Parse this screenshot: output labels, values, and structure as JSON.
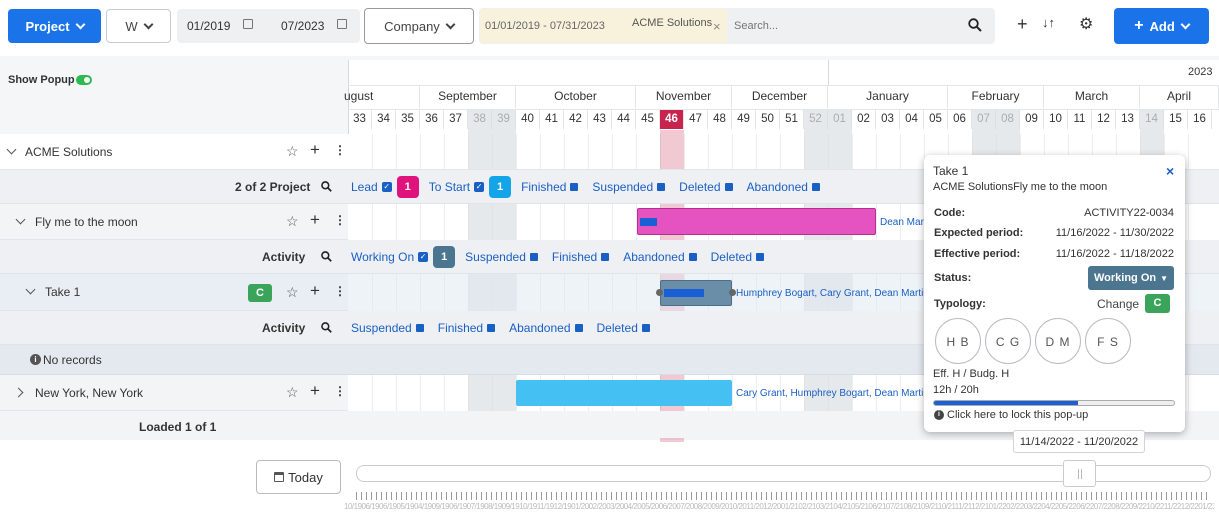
{
  "toolbar": {
    "project_label": "Project",
    "view_label": "W",
    "date_from": "01/2019",
    "date_to": "07/2023",
    "company_label": "Company",
    "filter_range": "01/01/2019 - 07/31/2023",
    "filter_chip": "ACME Solutions",
    "search_placeholder": "Search...",
    "add_label": "Add"
  },
  "show_popup_label": "Show Popup",
  "timeline": {
    "year_label": "2023",
    "months": [
      "ugust",
      "September",
      "October",
      "November",
      "December",
      "January",
      "February",
      "March",
      "April"
    ],
    "weeks": [
      "33",
      "34",
      "35",
      "36",
      "37",
      "38",
      "39",
      "40",
      "41",
      "42",
      "43",
      "44",
      "45",
      "46",
      "47",
      "48",
      "49",
      "50",
      "51",
      "52",
      "01",
      "02",
      "03",
      "04",
      "05",
      "06",
      "07",
      "08",
      "09",
      "10",
      "11",
      "12",
      "13",
      "14",
      "15",
      "16"
    ],
    "current_week": "46"
  },
  "rows": {
    "company": {
      "name": "ACME Solutions"
    },
    "project_header": {
      "count": "2 of 2 Project",
      "filters": [
        {
          "label": "Lead",
          "checked": true,
          "count": "1",
          "color": "#e0137d"
        },
        {
          "label": "To Start",
          "checked": true,
          "count": "1",
          "color": "#13a5e8"
        },
        {
          "label": "Finished"
        },
        {
          "label": "Suspended"
        },
        {
          "label": "Deleted"
        },
        {
          "label": "Abandoned"
        }
      ]
    },
    "project1": {
      "name": "Fly me to the moon",
      "assignee": "Dean Mart"
    },
    "activity_header1": {
      "label": "Activity",
      "filters": [
        {
          "label": "Working On",
          "checked": true,
          "count": "1",
          "color": "#4c7590"
        },
        {
          "label": "Suspended"
        },
        {
          "label": "Finished"
        },
        {
          "label": "Abandoned"
        },
        {
          "label": "Deleted"
        }
      ]
    },
    "take1": {
      "name": "Take 1",
      "badge": "C",
      "assignees": "Humphrey Bogart, Cary Grant, Dean Martin, F"
    },
    "activity_header2": {
      "label": "Activity",
      "filters": [
        {
          "label": "Suspended"
        },
        {
          "label": "Finished"
        },
        {
          "label": "Abandoned"
        },
        {
          "label": "Deleted"
        }
      ]
    },
    "no_records": "No records",
    "project2": {
      "name": "New York, New York",
      "assignees": "Cary Grant, Humphrey Bogart, Dean Martin, F"
    },
    "loaded": "Loaded 1 of 1"
  },
  "popup": {
    "title": "Take 1",
    "subtitle": "ACME SolutionsFly me to the moon",
    "code_label": "Code:",
    "code_value": "ACTIVITY22-0034",
    "expected_label": "Expected period:",
    "expected_value": "11/16/2022 - 11/30/2022",
    "effective_label": "Effective period:",
    "effective_value": "11/16/2022 - 11/18/2022",
    "status_label": "Status:",
    "status_value": "Working On",
    "typology_label": "Typology:",
    "change_label": "Change",
    "typology_badge": "C",
    "people": [
      "H B",
      "C G",
      "D M",
      "F S"
    ],
    "hours_label": "Eff. H / Budg. H",
    "hours_value": "12h / 20h",
    "hours_progress": 0.6,
    "lock_text": "Click here to lock this pop-up"
  },
  "week_tooltip": "11/14/2022 - 11/20/2022",
  "today_label": "Today",
  "colors": {
    "accent": "#1a73e8",
    "lead": "#e0137d",
    "tostart": "#13a5e8",
    "working": "#4c7590",
    "badge_green": "#3aa55a",
    "today_col": "#c8254e"
  }
}
